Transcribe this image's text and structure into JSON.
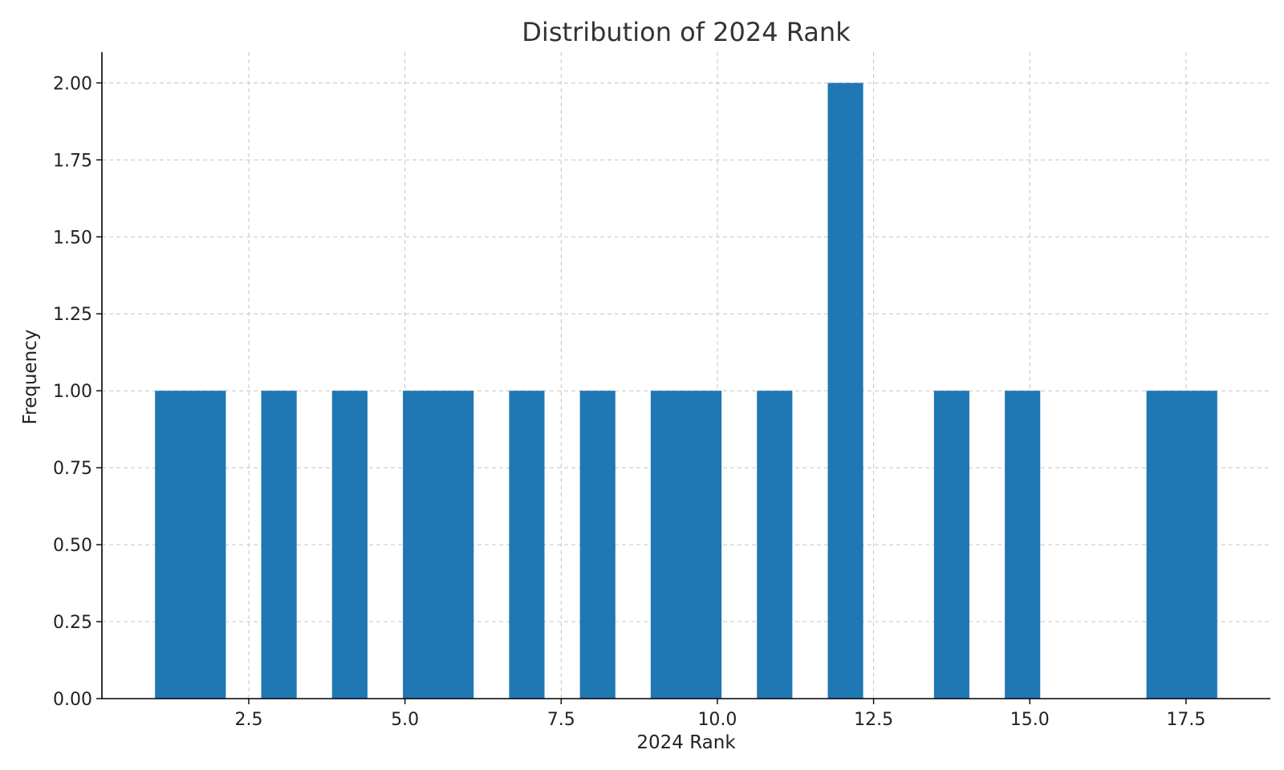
{
  "chart_data": {
    "type": "bar",
    "title": "Distribution of 2024 Rank",
    "xlabel": "2024 Rank",
    "ylabel": "Frequency",
    "xlim": [
      0.15,
      18.85
    ],
    "ylim": [
      0,
      2.1
    ],
    "x_ticks": [
      2.5,
      5.0,
      7.5,
      10.0,
      12.5,
      15.0,
      17.5
    ],
    "x_tick_labels": [
      "2.5",
      "5.0",
      "7.5",
      "10.0",
      "12.5",
      "15.0",
      "17.5"
    ],
    "y_ticks": [
      0,
      0.25,
      0.5,
      0.75,
      1.0,
      1.25,
      1.5,
      1.75,
      2.0
    ],
    "y_tick_labels": [
      "0.00",
      "0.25",
      "0.50",
      "0.75",
      "1.00",
      "1.25",
      "1.50",
      "1.75",
      "2.00"
    ],
    "grid": true,
    "bar_color": "#1f77b4",
    "bins": [
      {
        "start": 1.0,
        "end": 2.133,
        "count": 1
      },
      {
        "start": 2.7,
        "end": 3.267,
        "count": 1
      },
      {
        "start": 3.833,
        "end": 4.4,
        "count": 1
      },
      {
        "start": 4.967,
        "end": 6.1,
        "count": 1
      },
      {
        "start": 6.667,
        "end": 7.233,
        "count": 1
      },
      {
        "start": 7.8,
        "end": 8.367,
        "count": 1
      },
      {
        "start": 8.933,
        "end": 10.067,
        "count": 1
      },
      {
        "start": 10.633,
        "end": 11.2,
        "count": 1
      },
      {
        "start": 11.767,
        "end": 12.333,
        "count": 2
      },
      {
        "start": 13.467,
        "end": 14.033,
        "count": 1
      },
      {
        "start": 14.6,
        "end": 15.167,
        "count": 1
      },
      {
        "start": 16.867,
        "end": 18.0,
        "count": 1
      }
    ]
  }
}
